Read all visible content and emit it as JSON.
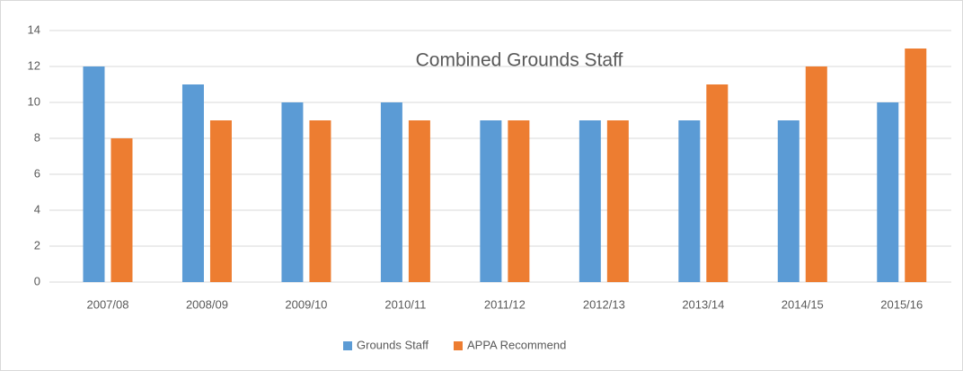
{
  "chart_data": {
    "type": "bar",
    "title": "Combined Grounds Staff",
    "categories": [
      "2007/08",
      "2008/09",
      "2009/10",
      "2010/11",
      "2011/12",
      "2012/13",
      "2013/14",
      "2014/15",
      "2015/16"
    ],
    "series": [
      {
        "name": "Grounds Staff",
        "color": "#5b9bd5",
        "values": [
          12,
          11,
          10,
          10,
          9,
          9,
          9,
          9,
          10
        ]
      },
      {
        "name": "APPA Recommend",
        "color": "#ed7d31",
        "values": [
          8,
          9,
          9,
          9,
          9,
          9,
          11,
          12,
          13
        ]
      }
    ],
    "ylim": [
      0,
      14
    ],
    "yticks": [
      0,
      2,
      4,
      6,
      8,
      10,
      12,
      14
    ],
    "grid": true,
    "legend": "bottom"
  }
}
